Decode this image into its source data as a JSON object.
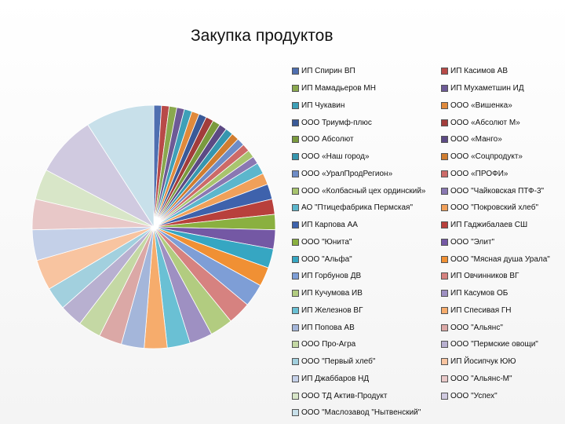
{
  "chart_data": {
    "type": "pie",
    "title": "Закупка продуктов",
    "legend_position": "right",
    "series": [
      {
        "name": "ИП Спирин ВП",
        "value": 1.0,
        "color": "#4f6fb0"
      },
      {
        "name": "ИП Касимов АВ",
        "value": 1.0,
        "color": "#b84a48"
      },
      {
        "name": "ИП Мамадьеров МН",
        "value": 1.0,
        "color": "#8aa84e"
      },
      {
        "name": "ИП Мухаметшин ИД",
        "value": 1.0,
        "color": "#6d5a96"
      },
      {
        "name": "ИП Чукавин",
        "value": 1.0,
        "color": "#3ea0b8"
      },
      {
        "name": "ООО «Вишенка»",
        "value": 1.0,
        "color": "#e08a3c"
      },
      {
        "name": "ООО Триумф-плюс",
        "value": 1.0,
        "color": "#3a5a98"
      },
      {
        "name": "ООО «Абсолют М»",
        "value": 1.0,
        "color": "#a23d3b"
      },
      {
        "name": "ООО Абсолют",
        "value": 1.0,
        "color": "#7a9a3e"
      },
      {
        "name": "ООО «Манго»",
        "value": 1.0,
        "color": "#5c4a84"
      },
      {
        "name": "ООО «Наш город»",
        "value": 1.0,
        "color": "#3696ae"
      },
      {
        "name": "ООО «Соцпродукт»",
        "value": 1.0,
        "color": "#d07d30"
      },
      {
        "name": "ООО «УралПродРегион»",
        "value": 1.0,
        "color": "#6e8cc6"
      },
      {
        "name": "ООО «ПРОФИ»",
        "value": 1.0,
        "color": "#cc6a68"
      },
      {
        "name": "ООО «Колбасный цех ординский»",
        "value": 1.0,
        "color": "#a8c46e"
      },
      {
        "name": "ООО \"Чайковская ПТФ-3\"",
        "value": 1.0,
        "color": "#8a78b2"
      },
      {
        "name": "АО \"Птицефабрика Пермская\"",
        "value": 1.5,
        "color": "#5cb6cc"
      },
      {
        "name": "ООО \"Покровский хлеб\"",
        "value": 1.5,
        "color": "#f0a05a"
      },
      {
        "name": "ИП Карпова АА",
        "value": 2.0,
        "color": "#3e62ac"
      },
      {
        "name": "ИП Гаджибалаев СШ",
        "value": 2.0,
        "color": "#b8403c"
      },
      {
        "name": "ООО \"Юнита\"",
        "value": 2.0,
        "color": "#8ab040"
      },
      {
        "name": "ООО \"Элит\"",
        "value": 2.5,
        "color": "#7458a4"
      },
      {
        "name": "ООО \"Альфа\"",
        "value": 2.5,
        "color": "#36a6c2"
      },
      {
        "name": "ООО \"Мясная душа Урала\"",
        "value": 2.5,
        "color": "#f09034"
      },
      {
        "name": "ИП Горбунов ДВ",
        "value": 3.0,
        "color": "#7e9ed6"
      },
      {
        "name": "ИП Овчинников ВГ",
        "value": 3.0,
        "color": "#d68280"
      },
      {
        "name": "ИП Кучумова ИВ",
        "value": 3.0,
        "color": "#b2cc80"
      },
      {
        "name": "ИП Касумов ОБ",
        "value": 3.0,
        "color": "#9e90c2"
      },
      {
        "name": "ИП Железнов ВГ",
        "value": 3.0,
        "color": "#6ac0d4"
      },
      {
        "name": "ИП Спесивая ГН",
        "value": 3.0,
        "color": "#f6ac6c"
      },
      {
        "name": "ИП Попова АВ",
        "value": 3.0,
        "color": "#a4b6da"
      },
      {
        "name": "ООО \"Альянс\"",
        "value": 3.0,
        "color": "#dba8a6"
      },
      {
        "name": "ООО Про-Агра",
        "value": 3.0,
        "color": "#c4d8a4"
      },
      {
        "name": "ООО \"Пермские овощи\"",
        "value": 3.0,
        "color": "#b8b0d0"
      },
      {
        "name": "ООО \"Первый хлеб\"",
        "value": 3.0,
        "color": "#a2d0de"
      },
      {
        "name": "ИП Йосипчук ЮЮ",
        "value": 4.0,
        "color": "#f8c4a0"
      },
      {
        "name": "ИП Джаббаров НД",
        "value": 4.0,
        "color": "#c4d0e8"
      },
      {
        "name": "ООО \"Альянс-М\"",
        "value": 4.0,
        "color": "#e8c8c8"
      },
      {
        "name": "ООО ТД Актив-Продукт",
        "value": 4.0,
        "color": "#d8e6c8"
      },
      {
        "name": "ООО \"Успех\"",
        "value": 8.0,
        "color": "#d0cae0"
      },
      {
        "name": "ООО \"Маслозавод \"Нытвенский\"",
        "value": 9.0,
        "color": "#c8e0ea"
      }
    ]
  }
}
